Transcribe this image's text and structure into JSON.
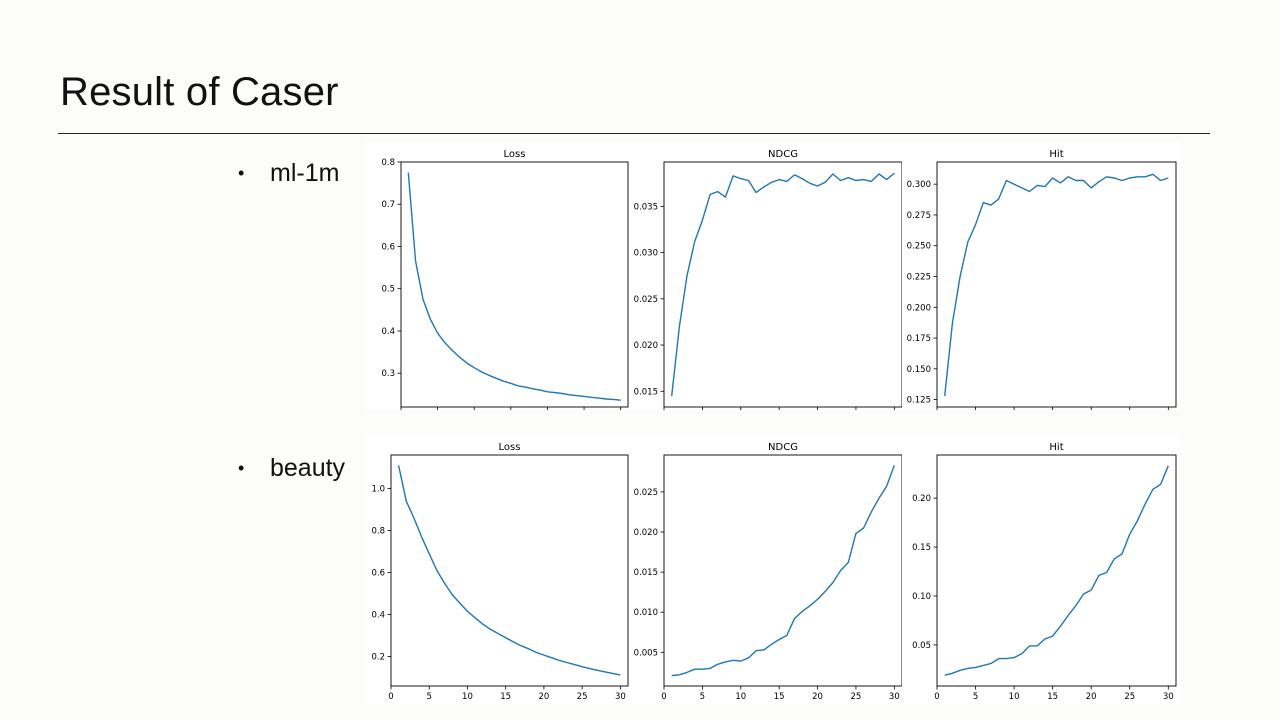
{
  "slide": {
    "title": "Result of Caser"
  },
  "bullets": [
    {
      "label": "ml-1m"
    },
    {
      "label": "beauty"
    }
  ],
  "colors": {
    "series": "#1f77b4",
    "axis": "#000000"
  },
  "chart_data": [
    {
      "dataset": "ml-1m",
      "type": "line",
      "title": "Loss",
      "x": [
        1,
        2,
        3,
        4,
        5,
        6,
        7,
        8,
        9,
        10,
        11,
        12,
        13,
        14,
        15,
        16,
        17,
        18,
        19,
        20,
        21,
        22,
        23,
        24,
        25,
        26,
        27,
        28,
        29,
        30
      ],
      "series": [
        {
          "values": [
            0.775,
            0.565,
            0.475,
            0.428,
            0.395,
            0.372,
            0.354,
            0.338,
            0.324,
            0.313,
            0.303,
            0.295,
            0.288,
            0.281,
            0.276,
            0.27,
            0.267,
            0.263,
            0.26,
            0.256,
            0.254,
            0.252,
            0.249,
            0.247,
            0.245,
            0.243,
            0.241,
            0.239,
            0.238,
            0.236
          ]
        }
      ],
      "xlim": [
        0,
        31
      ],
      "ylim": [
        0.22,
        0.8
      ],
      "xticks": [
        0,
        5,
        10,
        15,
        20,
        25,
        30
      ],
      "yticks": [
        "0.3",
        "0.4",
        "0.5",
        "0.6",
        "0.7",
        "0.8"
      ],
      "grid": false
    },
    {
      "dataset": "ml-1m",
      "type": "line",
      "title": "NDCG",
      "x": [
        1,
        2,
        3,
        4,
        5,
        6,
        7,
        8,
        9,
        10,
        11,
        12,
        13,
        14,
        15,
        16,
        17,
        18,
        19,
        20,
        21,
        22,
        23,
        24,
        25,
        26,
        27,
        28,
        29,
        30
      ],
      "series": [
        {
          "values": [
            0.0145,
            0.022,
            0.0275,
            0.0312,
            0.0335,
            0.0363,
            0.0366,
            0.036,
            0.0383,
            0.038,
            0.0378,
            0.0365,
            0.0371,
            0.0376,
            0.0379,
            0.0377,
            0.0384,
            0.038,
            0.0375,
            0.0372,
            0.0376,
            0.0385,
            0.0378,
            0.0381,
            0.0378,
            0.0379,
            0.0377,
            0.0385,
            0.0379,
            0.0386
          ]
        }
      ],
      "xlim": [
        0,
        31
      ],
      "ylim": [
        0.0133,
        0.0398
      ],
      "xticks": [
        0,
        5,
        10,
        15,
        20,
        25,
        30
      ],
      "yticks": [
        "0.015",
        "0.020",
        "0.025",
        "0.030",
        "0.035"
      ],
      "grid": false
    },
    {
      "dataset": "ml-1m",
      "type": "line",
      "title": "Hit",
      "x": [
        1,
        2,
        3,
        4,
        5,
        6,
        7,
        8,
        9,
        10,
        11,
        12,
        13,
        14,
        15,
        16,
        17,
        18,
        19,
        20,
        21,
        22,
        23,
        24,
        25,
        26,
        27,
        28,
        29,
        30
      ],
      "series": [
        {
          "values": [
            0.128,
            0.187,
            0.225,
            0.253,
            0.267,
            0.285,
            0.283,
            0.288,
            0.303,
            0.3,
            0.297,
            0.294,
            0.299,
            0.298,
            0.305,
            0.301,
            0.306,
            0.303,
            0.303,
            0.297,
            0.302,
            0.306,
            0.305,
            0.303,
            0.305,
            0.306,
            0.306,
            0.308,
            0.303,
            0.305
          ]
        }
      ],
      "xlim": [
        0,
        31
      ],
      "ylim": [
        0.119,
        0.318
      ],
      "xticks": [
        0,
        5,
        10,
        15,
        20,
        25,
        30
      ],
      "yticks": [
        "0.125",
        "0.150",
        "0.175",
        "0.200",
        "0.225",
        "0.250",
        "0.275",
        "0.300"
      ],
      "grid": false
    },
    {
      "dataset": "beauty",
      "type": "line",
      "title": "Loss",
      "x": [
        1,
        2,
        3,
        4,
        5,
        6,
        7,
        8,
        9,
        10,
        11,
        12,
        13,
        14,
        15,
        16,
        17,
        18,
        19,
        20,
        21,
        22,
        23,
        24,
        25,
        26,
        27,
        28,
        29,
        30
      ],
      "series": [
        {
          "values": [
            1.11,
            0.94,
            0.86,
            0.77,
            0.69,
            0.61,
            0.55,
            0.495,
            0.455,
            0.415,
            0.385,
            0.355,
            0.33,
            0.31,
            0.29,
            0.27,
            0.252,
            0.237,
            0.22,
            0.207,
            0.195,
            0.182,
            0.172,
            0.162,
            0.152,
            0.143,
            0.135,
            0.127,
            0.12,
            0.113
          ]
        }
      ],
      "xlim": [
        0,
        31
      ],
      "ylim": [
        0.06,
        1.16
      ],
      "xticks": [
        0,
        5,
        10,
        15,
        20,
        25,
        30
      ],
      "yticks": [
        "0.2",
        "0.4",
        "0.6",
        "0.8",
        "1.0"
      ],
      "grid": false
    },
    {
      "dataset": "beauty",
      "type": "line",
      "title": "NDCG",
      "x": [
        1,
        2,
        3,
        4,
        5,
        6,
        7,
        8,
        9,
        10,
        11,
        12,
        13,
        14,
        15,
        16,
        17,
        18,
        19,
        20,
        21,
        22,
        23,
        24,
        25,
        26,
        27,
        28,
        29,
        30
      ],
      "series": [
        {
          "values": [
            0.0021,
            0.0022,
            0.0025,
            0.0029,
            0.0029,
            0.003,
            0.0035,
            0.0038,
            0.004,
            0.0039,
            0.0043,
            0.0052,
            0.0053,
            0.006,
            0.0066,
            0.0071,
            0.0092,
            0.0101,
            0.0108,
            0.0116,
            0.0126,
            0.0137,
            0.0152,
            0.0162,
            0.0198,
            0.0205,
            0.0225,
            0.0242,
            0.0257,
            0.0283
          ]
        }
      ],
      "xlim": [
        0,
        31
      ],
      "ylim": [
        0.0008,
        0.0296
      ],
      "xticks": [
        0,
        5,
        10,
        15,
        20,
        25,
        30
      ],
      "yticks": [
        "0.005",
        "0.010",
        "0.015",
        "0.020",
        "0.025"
      ],
      "grid": false
    },
    {
      "dataset": "beauty",
      "type": "line",
      "title": "Hit",
      "x": [
        1,
        2,
        3,
        4,
        5,
        6,
        7,
        8,
        9,
        10,
        11,
        12,
        13,
        14,
        15,
        16,
        17,
        18,
        19,
        20,
        21,
        22,
        23,
        24,
        25,
        26,
        27,
        28,
        29,
        30
      ],
      "series": [
        {
          "values": [
            0.019,
            0.021,
            0.024,
            0.026,
            0.027,
            0.029,
            0.031,
            0.036,
            0.036,
            0.037,
            0.041,
            0.049,
            0.049,
            0.056,
            0.059,
            0.069,
            0.08,
            0.09,
            0.102,
            0.106,
            0.121,
            0.124,
            0.138,
            0.143,
            0.163,
            0.177,
            0.194,
            0.209,
            0.214,
            0.233
          ]
        }
      ],
      "xlim": [
        0,
        31
      ],
      "ylim": [
        0.008,
        0.244
      ],
      "xticks": [
        0,
        5,
        10,
        15,
        20,
        25,
        30
      ],
      "yticks": [
        "0.05",
        "0.10",
        "0.15",
        "0.20"
      ],
      "grid": false
    }
  ]
}
